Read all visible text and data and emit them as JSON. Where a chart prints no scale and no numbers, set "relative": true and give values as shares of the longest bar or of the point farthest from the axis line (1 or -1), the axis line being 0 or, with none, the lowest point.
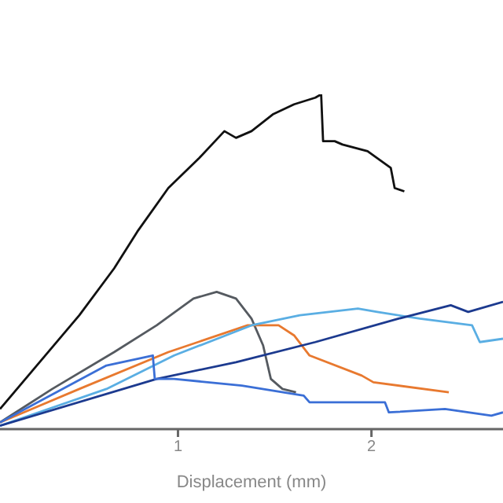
{
  "chart_data": {
    "type": "line",
    "xlabel": "Displacement (mm)",
    "relative": true,
    "xlim": [
      0.08,
      2.68
    ],
    "xticks": [
      1,
      2
    ],
    "series": [
      {
        "color": "#111111",
        "x": [
          0.08,
          0.27,
          0.49,
          0.67,
          0.79,
          0.95,
          1.11,
          1.24,
          1.3,
          1.38,
          1.49,
          1.6,
          1.71,
          1.74,
          1.75,
          1.81,
          1.85,
          1.98,
          2.1,
          2.12,
          2.17
        ],
        "values": [
          0.06,
          0.19,
          0.34,
          0.48,
          0.59,
          0.72,
          0.81,
          0.89,
          0.87,
          0.89,
          0.94,
          0.97,
          0.99,
          1,
          0.86,
          0.86,
          0.85,
          0.83,
          0.78,
          0.72,
          0.71
        ]
      },
      {
        "color": "#555a60",
        "x": [
          0.08,
          0.35,
          0.67,
          0.89,
          1.08,
          1.2,
          1.3,
          1.38,
          1.44,
          1.48,
          1.54,
          1.61
        ],
        "values": [
          0.02,
          0.12,
          0.23,
          0.31,
          0.39,
          0.41,
          0.39,
          0.33,
          0.25,
          0.15,
          0.12,
          0.11
        ]
      },
      {
        "color": "#e8792f",
        "x": [
          0.08,
          0.49,
          0.95,
          1.36,
          1.52,
          1.6,
          1.68,
          1.95,
          2.01,
          2.4
        ],
        "values": [
          0.02,
          0.12,
          0.23,
          0.31,
          0.31,
          0.28,
          0.22,
          0.16,
          0.14,
          0.11
        ]
      },
      {
        "color": "#5aaee3",
        "x": [
          0.08,
          0.63,
          0.98,
          1.38,
          1.63,
          1.93,
          2.03,
          2.25,
          2.52,
          2.56,
          2.68
        ],
        "values": [
          0.01,
          0.12,
          0.22,
          0.31,
          0.34,
          0.36,
          0.35,
          0.33,
          0.31,
          0.26,
          0.27
        ]
      },
      {
        "color": "#1c3a8f",
        "x": [
          0.08,
          0.89,
          1.3,
          1.71,
          2.14,
          2.41,
          2.5,
          2.68
        ],
        "values": [
          0.01,
          0.15,
          0.2,
          0.26,
          0.33,
          0.37,
          0.35,
          0.38
        ]
      },
      {
        "color": "#3b6fd6",
        "x": [
          0.08,
          0.63,
          0.87,
          0.88,
          0.98,
          1.33,
          1.65,
          1.68,
          2.07,
          2.09,
          2.38,
          2.62,
          2.68
        ],
        "values": [
          0.02,
          0.19,
          0.22,
          0.15,
          0.15,
          0.13,
          0.1,
          0.08,
          0.08,
          0.05,
          0.06,
          0.04,
          0.05
        ]
      }
    ]
  }
}
